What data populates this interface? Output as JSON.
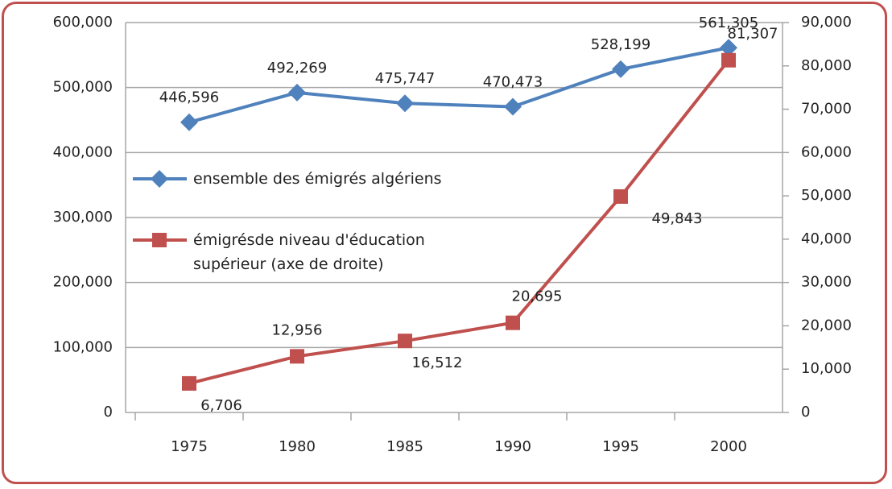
{
  "chart_data": {
    "type": "line",
    "categories": [
      "1975",
      "1980",
      "1985",
      "1990",
      "1995",
      "2000"
    ],
    "series": [
      {
        "name": "ensemble des émigrés algériens",
        "color": "#4f81bd",
        "marker": "diamond",
        "values": [
          446596,
          492269,
          475747,
          470473,
          528199,
          561305
        ],
        "value_labels": [
          "446,596",
          "492,269",
          "475,747",
          "470,473",
          "528,199",
          "561,305"
        ]
      },
      {
        "name": "émigrésde niveau d'éducation supérieur (axe de droite)",
        "color": "#c0504d",
        "marker": "square",
        "axis": "y2",
        "values": [
          6706,
          12956,
          16512,
          20695,
          49843,
          81307
        ],
        "value_labels": [
          "6,706",
          "12,956",
          "16,512",
          "20,695",
          "49,843",
          "81,307"
        ]
      }
    ],
    "ylim": [
      0,
      600000
    ],
    "yticks": [
      0,
      {
        "value": 100000,
        "label": "100,000"
      },
      {
        "value": 200000,
        "label": "200,000"
      },
      {
        "value": 300000,
        "label": "300,000"
      },
      {
        "value": 400000,
        "label": "400,000"
      },
      {
        "value": 500000,
        "label": "500,000"
      },
      {
        "value": 600000,
        "label": "600,000"
      }
    ],
    "y2lim": [
      0,
      90000
    ],
    "y2ticks": [
      0,
      {
        "value": 10000,
        "label": "10,000"
      },
      {
        "value": 20000,
        "label": "20,000"
      },
      {
        "value": 30000,
        "label": "30,000"
      },
      {
        "value": 40000,
        "label": "40,000"
      },
      {
        "value": 50000,
        "label": "50,000"
      },
      {
        "value": 60000,
        "label": "60,000"
      },
      {
        "value": 70000,
        "label": "70,000"
      },
      {
        "value": 80000,
        "label": "80,000"
      },
      {
        "value": 90000,
        "label": "90,000"
      }
    ],
    "grid": true,
    "legend": "left"
  }
}
